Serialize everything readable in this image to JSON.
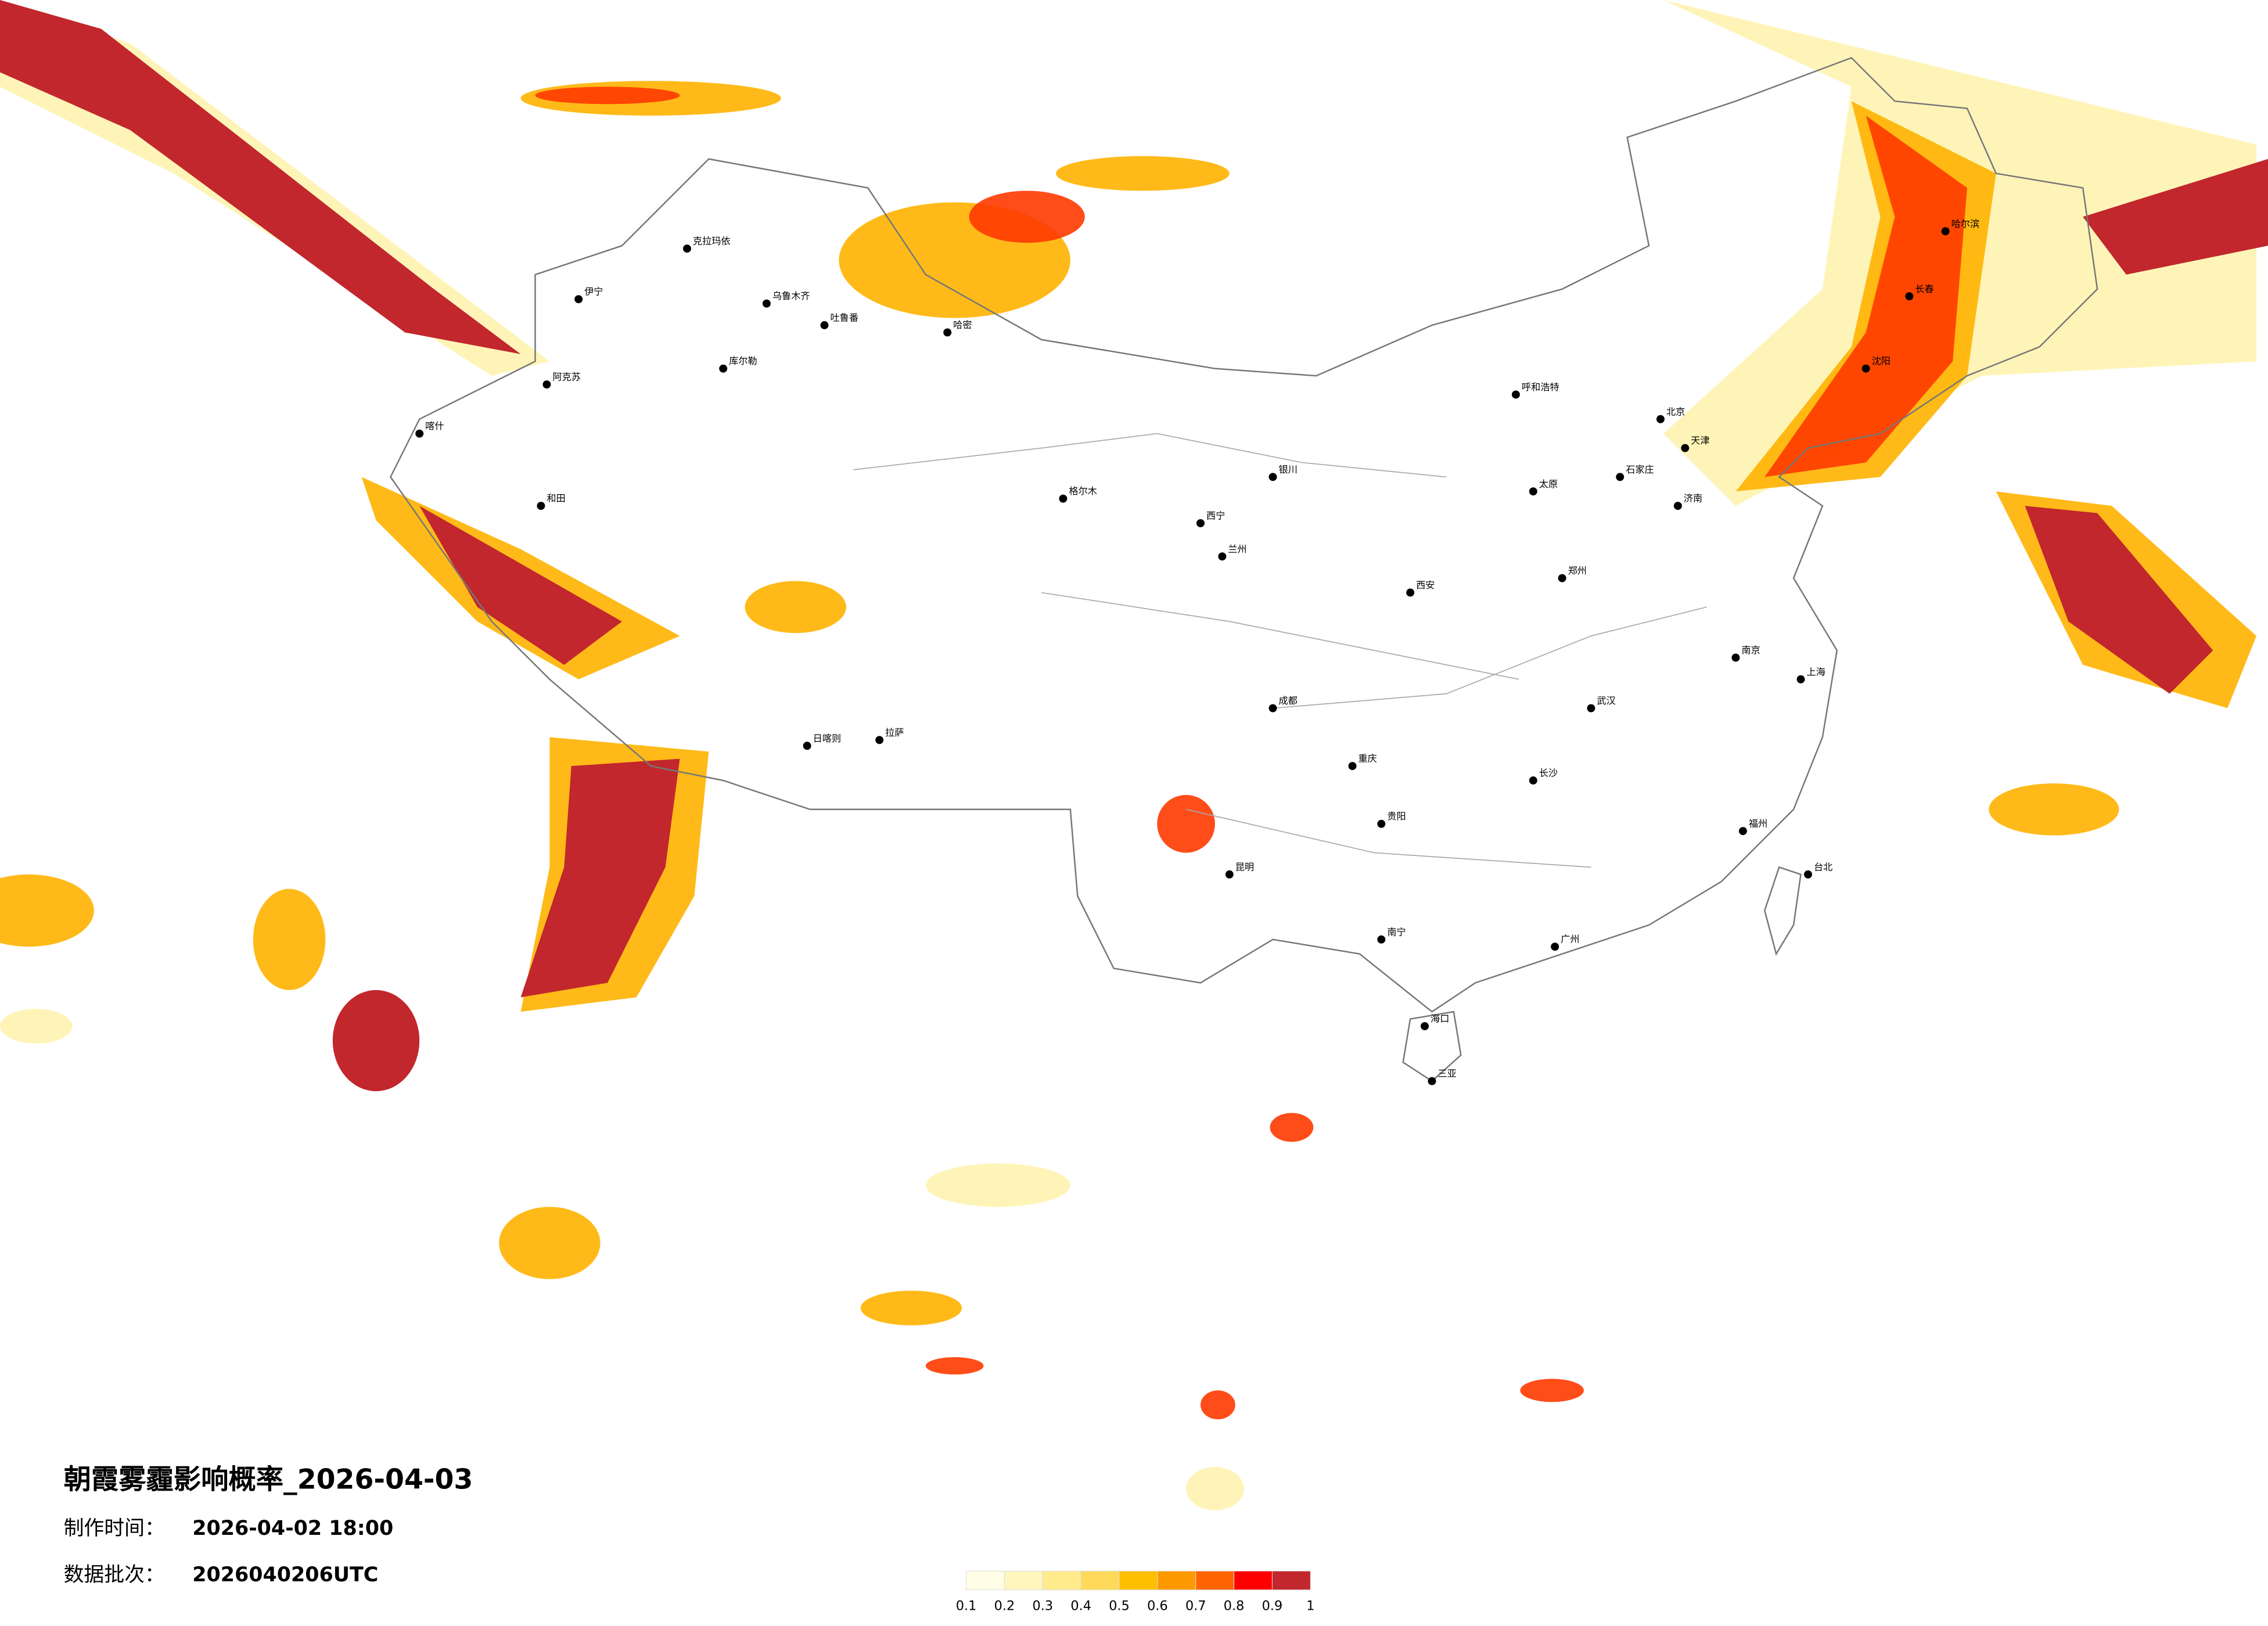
{
  "title": "朝霞雾霾影响概率_2026-04-03",
  "production_time": {
    "label": "制作时间：",
    "value": "2026-04-02 18:00"
  },
  "data_batch": {
    "label": "数据批次：",
    "value": "2026040206UTC"
  },
  "legend": {
    "ticks": [
      0.1,
      0.2,
      0.3,
      0.4,
      0.5,
      0.6,
      0.7,
      0.8,
      0.9,
      1
    ],
    "colors": [
      "#fffde6",
      "#fff5bf",
      "#ffeb8c",
      "#ffd95a",
      "#ffbf00",
      "#ff9900",
      "#ff6400",
      "#ff0000",
      "#c1272d"
    ]
  },
  "cities": [
    "克拉玛依",
    "乌鲁木齐",
    "吐鲁番",
    "哈密",
    "库尔勒",
    "阿克苏",
    "和田",
    "喀什",
    "伊宁",
    "拉萨",
    "日喀则",
    "格尔木",
    "西宁",
    "兰州",
    "银川",
    "呼和浩特",
    "北京",
    "天津",
    "哈尔滨",
    "长春",
    "沈阳",
    "石家庄",
    "太原",
    "西安",
    "郑州",
    "济南",
    "南京",
    "上海",
    "武汉",
    "成都",
    "重庆",
    "长沙",
    "贵阳",
    "昆明",
    "南宁",
    "广州",
    "福州",
    "台北",
    "海口",
    "三亚"
  ]
}
